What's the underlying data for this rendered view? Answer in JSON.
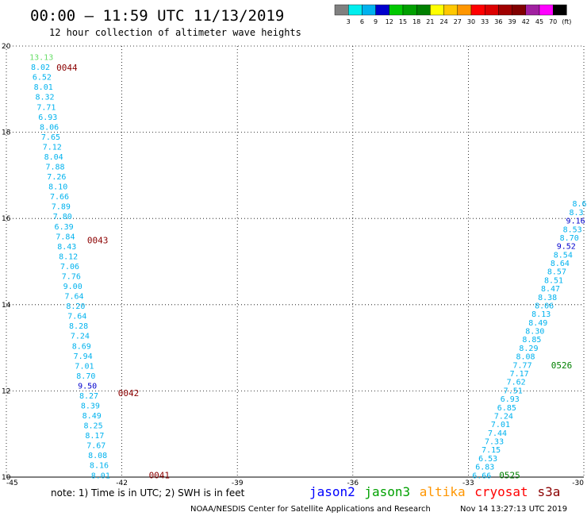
{
  "header": {
    "title": "00:00 – 11:59 UTC 11/13/2019",
    "subtitle": "12 hour collection of altimeter wave heights"
  },
  "legend": {
    "labels": [
      "3",
      "6",
      "9",
      "12",
      "15",
      "18",
      "21",
      "24",
      "27",
      "30",
      "33",
      "36",
      "39",
      "42",
      "45",
      "70",
      "(ft)"
    ],
    "colors": [
      "#808080",
      "#00eeee",
      "#00b2ee",
      "#0000cd",
      "#00c800",
      "#00a000",
      "#008000",
      "#ffff00",
      "#ffc800",
      "#ff9600",
      "#ff0000",
      "#dc0000",
      "#a00000",
      "#800000",
      "#a020a0",
      "#ff00ff",
      "#000000"
    ]
  },
  "footer": {
    "note": "note: 1) Time is in UTC; 2) SWH is in feet",
    "satellites": [
      {
        "name": "jason2",
        "color": "#0000ff"
      },
      {
        "name": "jason3",
        "color": "#00a000"
      },
      {
        "name": "altika",
        "color": "#ff9600"
      },
      {
        "name": "cryosat",
        "color": "#ff0000"
      },
      {
        "name": "s3a",
        "color": "#8b0000"
      }
    ],
    "credit": "NOAA/NESDIS Center for Satellite Applications and Research",
    "timestamp": "Nov 14 13:27:13 UTC 2019"
  },
  "chart_data": {
    "type": "scatter",
    "title": "00:00 – 11:59 UTC 11/13/2019",
    "subtitle": "12 hour collection of altimeter wave heights",
    "xlim": [
      -45,
      -30
    ],
    "ylim": [
      10,
      20
    ],
    "xticks": [
      "-45",
      "-42",
      "-39",
      "-36",
      "-33",
      "-30"
    ],
    "yticks": [
      "10",
      "12",
      "14",
      "16",
      "18",
      "20"
    ],
    "grid": true,
    "units": "ft",
    "tracks": [
      {
        "lon_start": -44.4,
        "lat_start": 19.75,
        "lon_end": -42.8,
        "lat_end": 10.05,
        "values": [
          "13.13",
          "8.02",
          "6.52",
          "8.01",
          "8.32",
          "7.71",
          "6.93",
          "8.06",
          "7.65",
          "7.12",
          "8.04",
          "7.88",
          "7.26",
          "8.10",
          "7.66",
          "7.89",
          "7.80",
          "6.39",
          "7.84",
          "8.43",
          "8.12",
          "7.06",
          "7.76",
          "9.00",
          "7.64",
          "8.20",
          "7.64",
          "8.28",
          "7.24",
          "8.69",
          "7.94",
          "7.01",
          "8.70",
          "9.50",
          "8.27",
          "8.39",
          "8.49",
          "8.25",
          "8.17",
          "7.67",
          "8.08",
          "8.16",
          "8.01"
        ],
        "colors": [
          "#66dd66",
          "#00b2ee",
          "#00b2ee",
          "#00b2ee",
          "#00b2ee",
          "#00b2ee",
          "#00b2ee",
          "#00b2ee",
          "#00b2ee",
          "#00b2ee",
          "#00b2ee",
          "#00b2ee",
          "#00b2ee",
          "#00b2ee",
          "#00b2ee",
          "#00b2ee",
          "#00b2ee",
          "#00b2ee",
          "#00b2ee",
          "#00b2ee",
          "#00b2ee",
          "#00b2ee",
          "#00b2ee",
          "#00b2ee",
          "#00b2ee",
          "#00b2ee",
          "#00b2ee",
          "#00b2ee",
          "#00b2ee",
          "#00b2ee",
          "#00b2ee",
          "#00b2ee",
          "#00b2ee",
          "#0000cd",
          "#00b2ee",
          "#00b2ee",
          "#00b2ee",
          "#00b2ee",
          "#00b2ee",
          "#00b2ee",
          "#00b2ee",
          "#00b2ee",
          "#00b2ee"
        ],
        "pass_labels": [
          {
            "text": "0044",
            "lon": -43.7,
            "lat": 19.5,
            "color": "#8b0000"
          },
          {
            "text": "0043",
            "lon": -42.9,
            "lat": 15.5,
            "color": "#8b0000"
          },
          {
            "text": "0042",
            "lon": -42.1,
            "lat": 11.95,
            "color": "#8b0000"
          },
          {
            "text": "0041",
            "lon": -41.3,
            "lat": 10.05,
            "color": "#8b0000"
          }
        ]
      },
      {
        "lon_start": -32.9,
        "lat_start": 10.05,
        "lon_end": -30.3,
        "lat_end": 16.35,
        "values": [
          "6.66",
          "6.83",
          "6.53",
          "7.15",
          "7.33",
          "7.44",
          "7.01",
          "7.24",
          "6.85",
          "6.93",
          "7.51",
          "7.62",
          "7.17",
          "7.77",
          "8.08",
          "8.29",
          "8.85",
          "8.30",
          "8.49",
          "8.13",
          "8.06",
          "8.38",
          "8.47",
          "8.51",
          "8.57",
          "8.64",
          "8.54",
          "9.52",
          "8.70",
          "8.53",
          "9.16",
          "8.3",
          "8.6"
        ],
        "colors": [
          "#00b2ee",
          "#00b2ee",
          "#00b2ee",
          "#00b2ee",
          "#00b2ee",
          "#00b2ee",
          "#00b2ee",
          "#00b2ee",
          "#00b2ee",
          "#00b2ee",
          "#00b2ee",
          "#00b2ee",
          "#00b2ee",
          "#00b2ee",
          "#00b2ee",
          "#00b2ee",
          "#00b2ee",
          "#00b2ee",
          "#00b2ee",
          "#00b2ee",
          "#00b2ee",
          "#00b2ee",
          "#00b2ee",
          "#00b2ee",
          "#00b2ee",
          "#00b2ee",
          "#00b2ee",
          "#0000cd",
          "#00b2ee",
          "#00b2ee",
          "#0000cd",
          "#00b2ee",
          "#00b2ee"
        ],
        "pass_labels": [
          {
            "text": "0525",
            "lon": -32.2,
            "lat": 10.05,
            "color": "#008000"
          },
          {
            "text": "0526",
            "lon": -30.85,
            "lat": 12.6,
            "color": "#008000"
          }
        ]
      }
    ]
  }
}
